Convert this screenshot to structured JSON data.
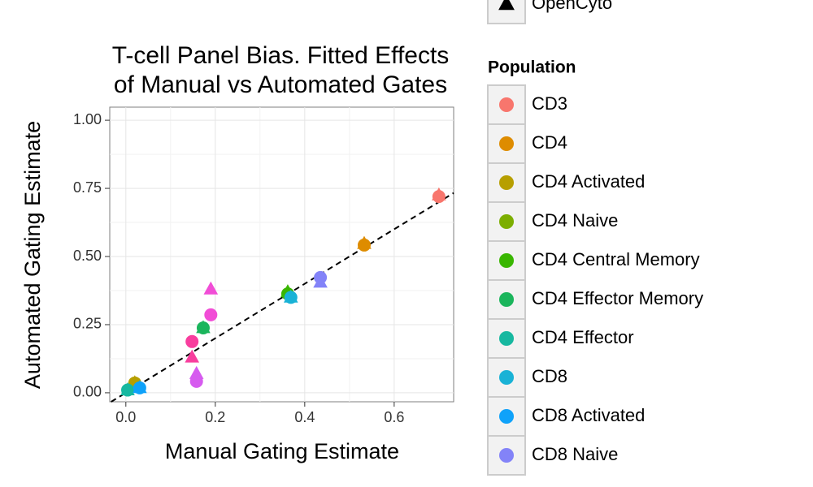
{
  "chart_data": {
    "type": "scatter",
    "title": [
      "T-cell Panel Bias. Fitted Effects",
      "of Manual vs Automated Gates"
    ],
    "x_label": "Manual Gating Estimate",
    "y_label": "Automated Gating Estimate",
    "xlim": [
      -0.036,
      0.733
    ],
    "ylim": [
      -0.033,
      1.048
    ],
    "xticks": [
      {
        "value": 0,
        "label": "0.0"
      },
      0.2,
      0.4,
      0.6
    ],
    "yticks": [
      {
        "value": 0,
        "label": "0.00"
      },
      0.25,
      {
        "value": 0.5,
        "label": "0.50"
      },
      0.75,
      {
        "value": 1,
        "label": "1.00"
      }
    ],
    "grid": true,
    "shape_legend": [
      {
        "label": "OpenCyto",
        "shape": "triangle"
      }
    ],
    "legend_title": "Population",
    "series": [
      {
        "name": "CD3",
        "color": "#F8766D",
        "x": [
          0.7,
          0.7
        ],
        "values": [
          0.72,
          0.725
        ],
        "shapes": [
          "circle",
          "triangle"
        ]
      },
      {
        "name": "CD4",
        "color": "#DE8C00",
        "x": [
          0.533,
          0.533
        ],
        "values": [
          0.542,
          0.547
        ],
        "shapes": [
          "circle",
          "triangle"
        ]
      },
      {
        "name": "CD4 Activated",
        "color": "#B79F00",
        "x": [
          0.02,
          0.02
        ],
        "values": [
          0.036,
          0.036
        ],
        "shapes": [
          "circle",
          "triangle"
        ]
      },
      {
        "name": "CD4 Naive",
        "color": "#7CAE00",
        "x": [],
        "values": [],
        "shapes": []
      },
      {
        "name": "CD4 Central Memory",
        "color": "#39B600",
        "x": [
          0.362,
          0.362
        ],
        "values": [
          0.363,
          0.37
        ],
        "shapes": [
          "circle",
          "triangle"
        ]
      },
      {
        "name": "CD4 Effector Memory",
        "color": "#1BB55C",
        "x": [
          0.173,
          0.173
        ],
        "values": [
          0.238,
          0.238
        ],
        "shapes": [
          "circle",
          "triangle"
        ]
      },
      {
        "name": "CD4 Effector",
        "color": "#17B8A0",
        "x": [
          0.004,
          0.004
        ],
        "values": [
          0.01,
          0.01
        ],
        "shapes": [
          "circle",
          "triangle"
        ]
      },
      {
        "name": "CD8",
        "color": "#19B2D6",
        "x": [
          0.369,
          0.369
        ],
        "values": [
          0.35,
          0.35
        ],
        "shapes": [
          "circle",
          "triangle"
        ]
      },
      {
        "name": "CD8 Activated",
        "color": "#0FA2FA",
        "x": [
          0.031,
          0.031
        ],
        "values": [
          0.018,
          0.018
        ],
        "shapes": [
          "circle",
          "triangle"
        ]
      },
      {
        "name": "CD8 Naive",
        "color": "#8383F8",
        "x": [
          0.435,
          0.435
        ],
        "values": [
          0.423,
          0.405
        ],
        "shapes": [
          "circle",
          "triangle"
        ]
      },
      {
        "color": "#D65BEF",
        "x": [
          0.158,
          0.158
        ],
        "values": [
          0.042,
          0.07
        ],
        "shapes": [
          "circle",
          "triangle"
        ]
      },
      {
        "color": "#F14DD6",
        "x": [
          0.19,
          0.19
        ],
        "values": [
          0.286,
          0.38
        ],
        "shapes": [
          "circle",
          "triangle"
        ]
      },
      {
        "color": "#F83E9E",
        "x": [
          0.148,
          0.148
        ],
        "values": [
          0.188,
          0.13
        ],
        "shapes": [
          "circle",
          "triangle"
        ]
      }
    ]
  }
}
